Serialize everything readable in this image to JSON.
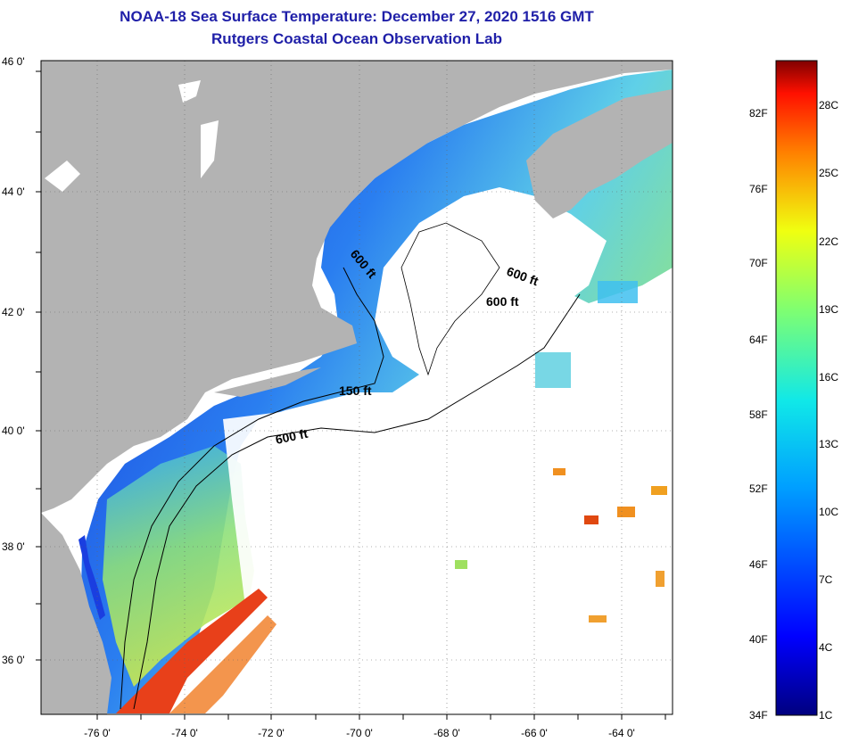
{
  "header": {
    "title": "NOAA-18 Sea Surface Temperature:  December 27, 2020 1516 GMT",
    "subtitle": "Rutgers Coastal Ocean Observation Lab"
  },
  "map": {
    "lat_labels": [
      "46 0'",
      "44 0'",
      "42 0'",
      "40 0'",
      "38 0'",
      "36 0'"
    ],
    "lon_labels": [
      "-76 0'",
      "-74 0'",
      "-72 0'",
      "-70 0'",
      "-68 0'",
      "-66 0'",
      "-64 0'"
    ],
    "contour_labels": [
      "600 ft",
      "600 ft",
      "600 ft",
      "150 ft",
      "600 ft"
    ],
    "colors": {
      "land": "#b3b3b3",
      "cloud": "#ffffff",
      "cold_water": "#1a3ee0",
      "warm_water": "#e8401a"
    }
  },
  "colorbar": {
    "fahrenheit_labels": [
      "82F",
      "76F",
      "70F",
      "64F",
      "58F",
      "52F",
      "46F",
      "40F",
      "34F"
    ],
    "celsius_labels": [
      "28C",
      "25C",
      "22C",
      "19C",
      "16C",
      "13C",
      "10C",
      "7C",
      "4C",
      "1C"
    ]
  }
}
